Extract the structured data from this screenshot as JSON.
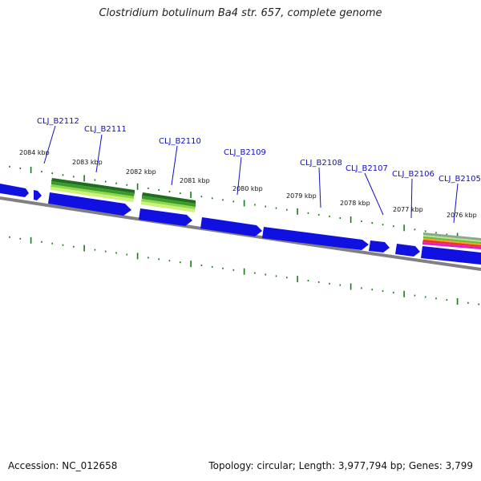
{
  "title": "Clostridium botulinum Ba4 str. 657, complete genome",
  "footer": {
    "accession": "Accession: NC_012658",
    "summary": "Topology: circular; Length: 3,977,794 bp; Genes: 3,799"
  },
  "colors": {
    "cds": "#1010e0",
    "backbone": "#808080",
    "ticks": "#1a7a1a",
    "gene_label": "#1010c0"
  },
  "kbp_labels": [
    {
      "text": "2084 kbp",
      "kbp": 2084
    },
    {
      "text": "2083 kbp",
      "kbp": 2083
    },
    {
      "text": "2082 kbp",
      "kbp": 2082
    },
    {
      "text": "2081 kbp",
      "kbp": 2081
    },
    {
      "text": "2080 kbp",
      "kbp": 2080
    },
    {
      "text": "2079 kbp",
      "kbp": 2079
    },
    {
      "text": "2078 kbp",
      "kbp": 2078
    },
    {
      "text": "2077 kbp",
      "kbp": 2077
    },
    {
      "text": "2076 kbp",
      "kbp": 2076
    }
  ],
  "gene_labels": [
    {
      "text": "CLJ_B2112"
    },
    {
      "text": "CLJ_B2111"
    },
    {
      "text": "CLJ_B2110"
    },
    {
      "text": "CLJ_B2109"
    },
    {
      "text": "CLJ_B2108"
    },
    {
      "text": "CLJ_B2107"
    },
    {
      "text": "CLJ_B2106"
    },
    {
      "text": "CLJ_B2105"
    }
  ]
}
